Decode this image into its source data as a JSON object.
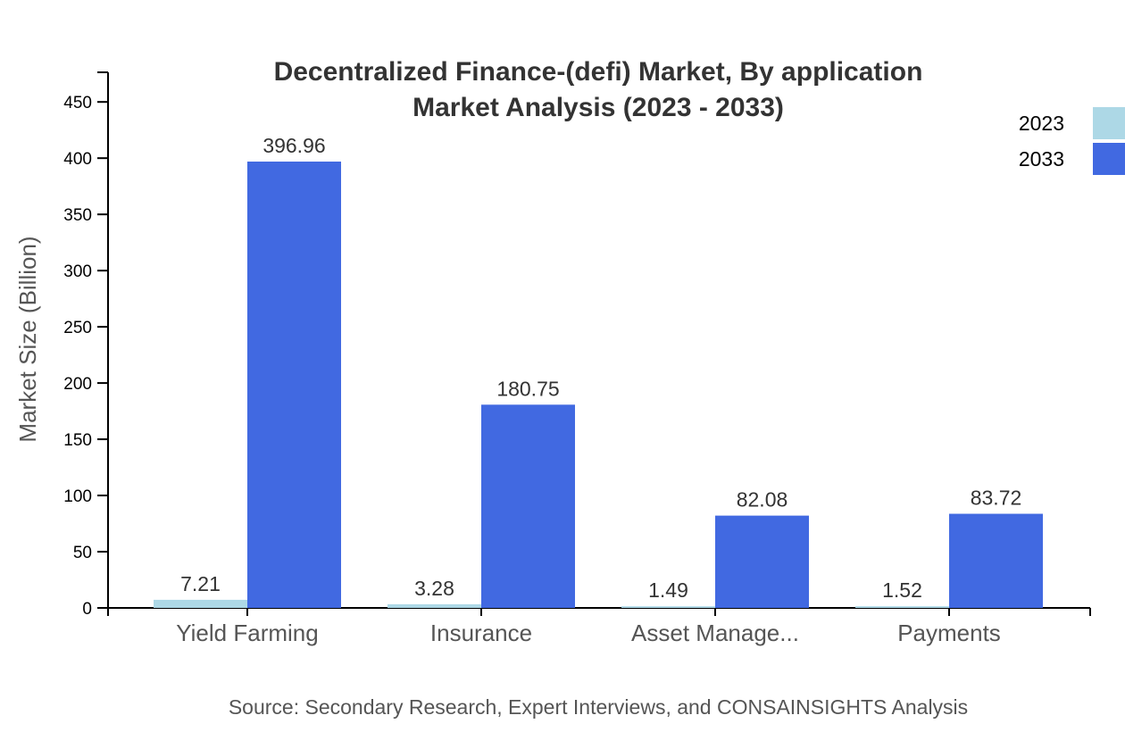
{
  "chart_data": {
    "type": "bar",
    "title_line1": "Decentralized Finance-(defi) Market, By application",
    "title_line2": "Market Analysis (2023 - 2033)",
    "xlabel": "",
    "ylabel": "Market Size (Billion)",
    "ylim": [
      0,
      476.35
    ],
    "yticks": [
      0,
      50,
      100,
      150,
      200,
      250,
      300,
      350,
      400,
      450
    ],
    "categories": [
      "Yield Farming",
      "Insurance",
      "Asset Manage...",
      "Payments"
    ],
    "series": [
      {
        "name": "2023",
        "color": "#ADD8E6",
        "values": [
          7.21,
          3.28,
          1.49,
          1.52
        ]
      },
      {
        "name": "2033",
        "color": "#4169E1",
        "values": [
          396.96,
          180.75,
          82.08,
          83.72
        ]
      }
    ],
    "legend_position": "top-right",
    "grid": false,
    "source": "Source: Secondary Research, Expert Interviews, and CONSAINSIGHTS Analysis"
  }
}
